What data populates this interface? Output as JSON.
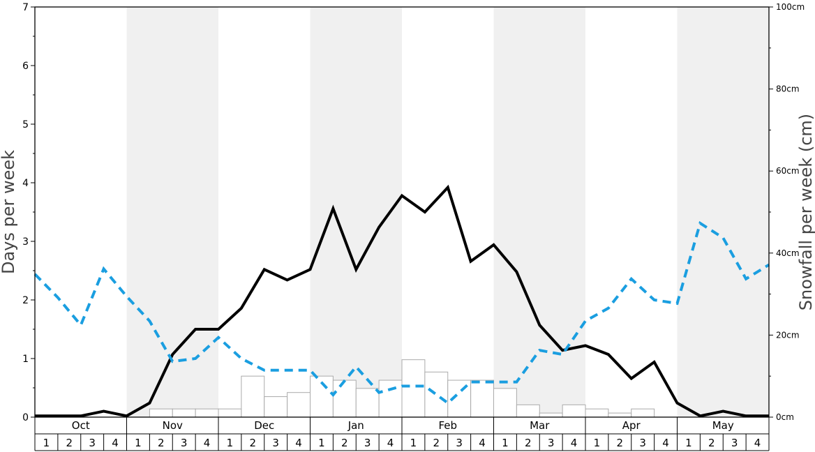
{
  "chart_data": {
    "type": "line",
    "months": [
      "Oct",
      "Nov",
      "Dec",
      "Jan",
      "Feb",
      "Mar",
      "Apr",
      "May"
    ],
    "week_labels": [
      "1",
      "2",
      "3",
      "4"
    ],
    "ylabel": "Days per week",
    "y2label": "Snowfall per week (cm)",
    "ylim": [
      0,
      7
    ],
    "y_ticks": [
      "0",
      "1",
      "2",
      "3",
      "4",
      "5",
      "6",
      "7"
    ],
    "y2lim": [
      0,
      100
    ],
    "y2_ticks": [
      "0cm",
      "20cm",
      "40cm",
      "60cm",
      "80cm",
      "100cm"
    ],
    "grid": false,
    "series": [
      {
        "axis": "left",
        "style": "solid",
        "color": "#000000",
        "values": [
          0.02,
          0.02,
          0.02,
          0.1,
          0.02,
          0.24,
          1.07,
          1.5,
          1.5,
          1.86,
          2.52,
          2.34,
          2.52,
          3.56,
          2.52,
          3.24,
          3.78,
          3.5,
          3.92,
          2.66,
          2.94,
          2.48,
          1.57,
          1.14,
          1.22,
          1.07,
          0.66,
          0.94,
          0.24,
          0.02,
          0.1,
          0.02,
          0.02
        ]
      },
      {
        "axis": "left",
        "style": "dashed",
        "color": "#1a9ee0",
        "values": [
          2.44,
          2.04,
          1.57,
          2.53,
          2.06,
          1.64,
          0.95,
          1.0,
          1.36,
          1.0,
          0.8,
          0.8,
          0.8,
          0.38,
          0.86,
          0.42,
          0.53,
          0.53,
          0.24,
          0.6,
          0.6,
          0.6,
          1.14,
          1.07,
          1.64,
          1.86,
          2.36,
          2.0,
          1.94,
          3.31,
          3.06,
          2.36,
          2.6
        ]
      },
      {
        "axis": "right",
        "type": "bar",
        "values": [
          0,
          0,
          0,
          0,
          0,
          2,
          2,
          2,
          2,
          10,
          5,
          6,
          10,
          9,
          7,
          9,
          14,
          11,
          9,
          9,
          7,
          3,
          1,
          3,
          2,
          1,
          2,
          0,
          0,
          0,
          0,
          0
        ]
      }
    ]
  }
}
